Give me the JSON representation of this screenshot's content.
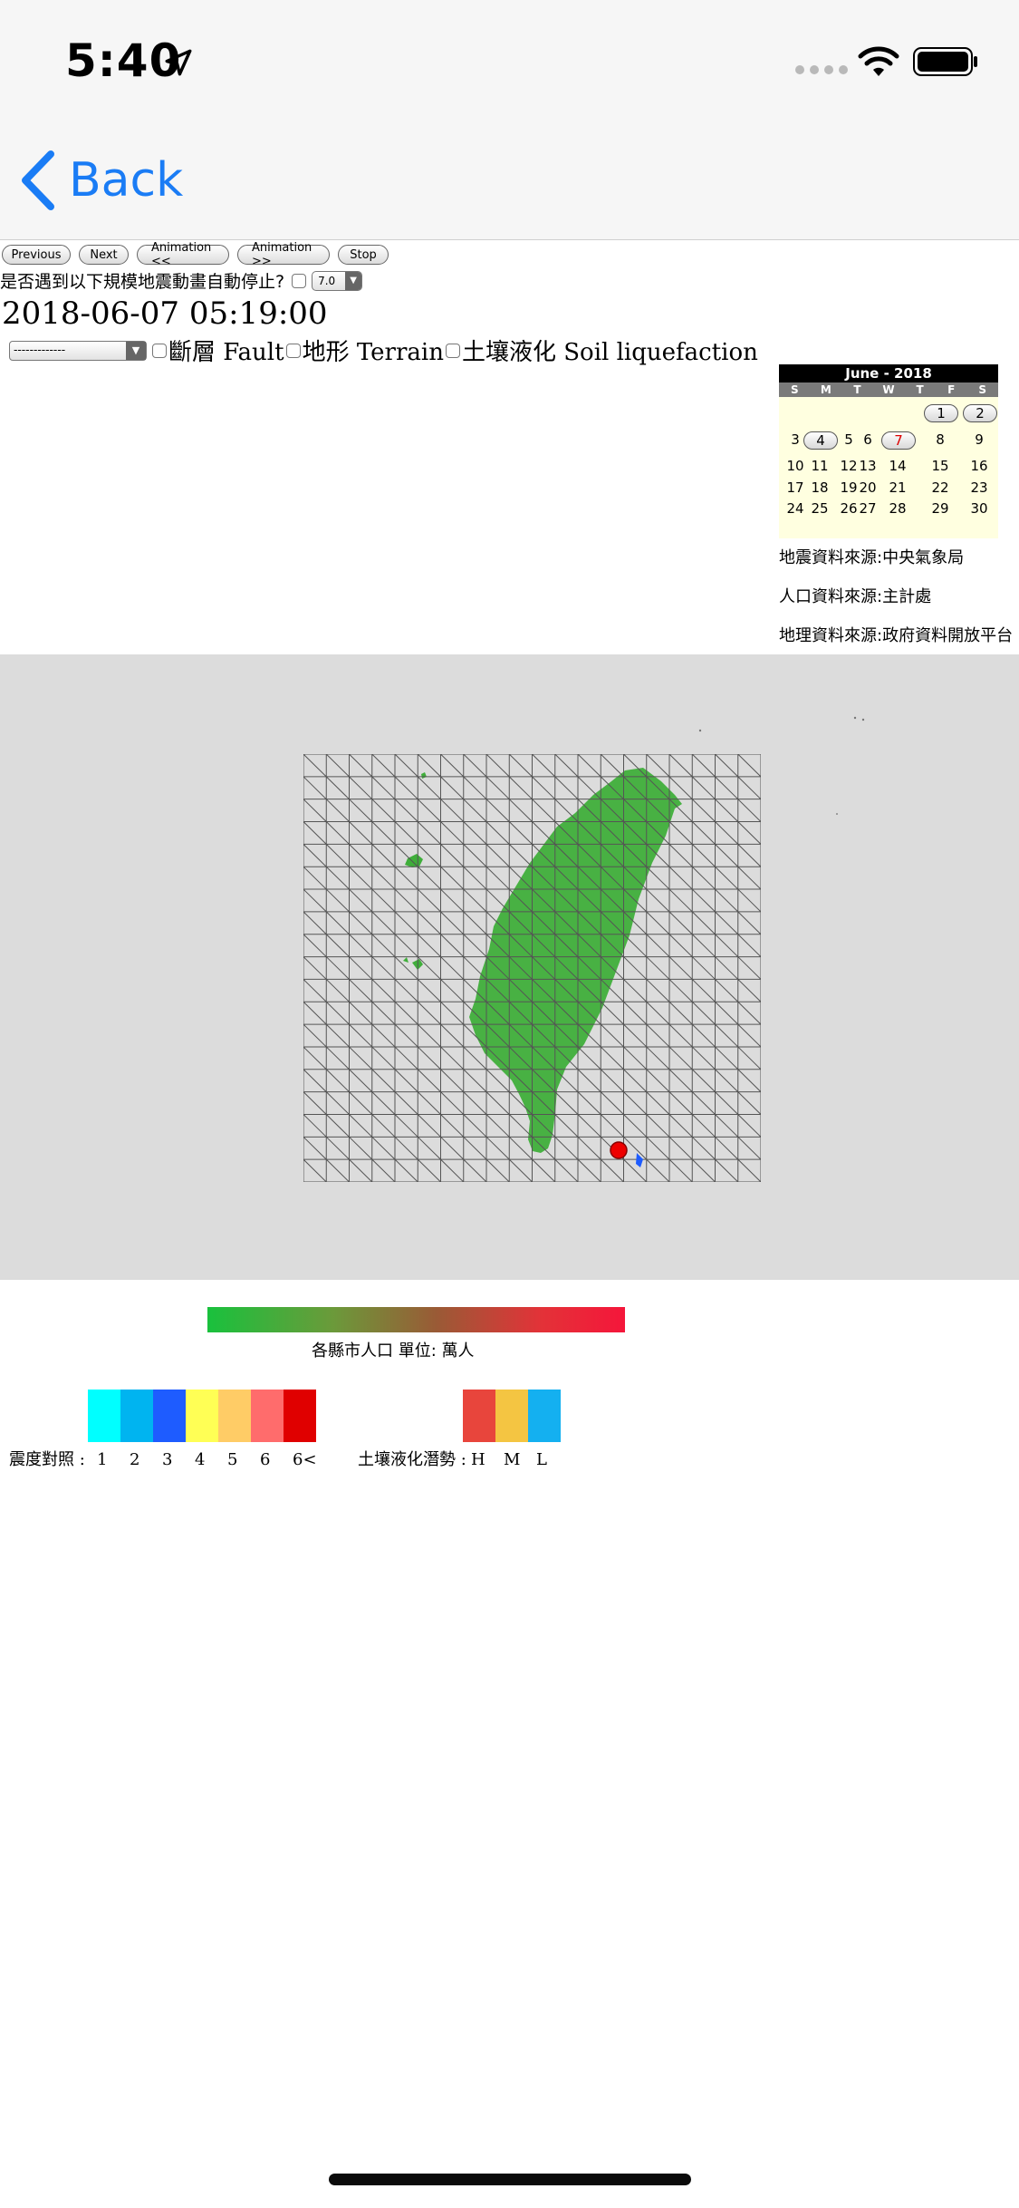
{
  "status": {
    "time": "5:40"
  },
  "nav": {
    "back_label": "Back"
  },
  "controls": {
    "previous": "Previous",
    "next": "Next",
    "anim_back": "Animation <<",
    "anim_fwd": "Animation >>",
    "stop": "Stop",
    "autostop_label": "是否遇到以下規模地震動畫自動停止?",
    "magnitude_value": "7.0"
  },
  "datetime": "2018-06-07 05:19:00",
  "layers": {
    "select_value": "-------------",
    "fault": "斷層 Fault",
    "terrain": "地形 Terrain",
    "liquefaction": "土壤液化 Soil liquefaction"
  },
  "calendar": {
    "title": "June - 2018",
    "weekdays": [
      "S",
      "M",
      "T",
      "W",
      "T",
      "F",
      "S"
    ],
    "row1": [
      "1",
      "2"
    ],
    "row2": [
      "3",
      "4",
      "5",
      "6",
      "7",
      "8",
      "9"
    ],
    "row3": [
      "10",
      "11",
      "12",
      "13",
      "14",
      "15",
      "16"
    ],
    "row4": [
      "17",
      "18",
      "19",
      "20",
      "21",
      "22",
      "23"
    ],
    "row5": [
      "24",
      "25",
      "26",
      "27",
      "28",
      "29",
      "30"
    ]
  },
  "sources": {
    "earthquake": "地震資料來源:中央氣象局",
    "population": "人口資料來源:主計處",
    "geography": "地理資料來源:政府資料開放平台"
  },
  "legend": {
    "population_label": "各縣市人口 單位: 萬人",
    "intensity_label": "震度對照 :",
    "intensity_levels": [
      "1",
      "2",
      "3",
      "4",
      "5",
      "6",
      "6<"
    ],
    "intensity_colors": [
      "#00ffff",
      "#00b4f0",
      "#1e5cff",
      "#ffff55",
      "#ffcc66",
      "#ff6c6c",
      "#e00000"
    ],
    "liquefaction_label": "土壤液化潛勢 :",
    "liquefaction_levels": [
      "H",
      "M",
      "L"
    ],
    "liquefaction_colors": [
      "#e8453c",
      "#f4c542",
      "#14b0f0"
    ]
  }
}
